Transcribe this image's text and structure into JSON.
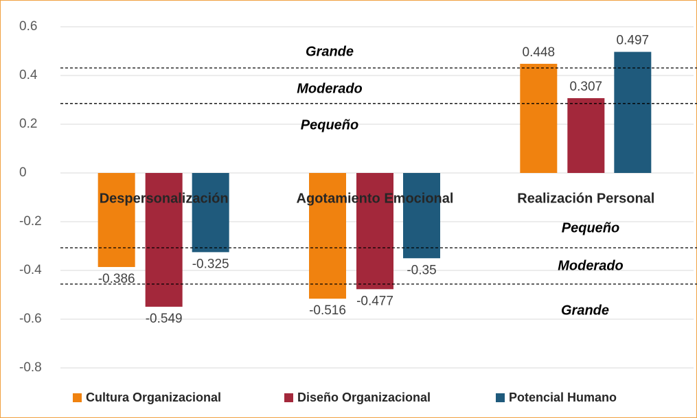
{
  "chart_data": {
    "type": "bar",
    "categories": [
      "Despersonalización",
      "Agotamiento Emocional",
      "Realización Personal"
    ],
    "series": [
      {
        "name": "Cultura Organizacional",
        "color": "#f0820f",
        "values": [
          -0.386,
          -0.516,
          0.448
        ]
      },
      {
        "name": "Diseño Organizacional",
        "color": "#a3283b",
        "values": [
          -0.549,
          -0.477,
          0.307
        ]
      },
      {
        "name": "Potencial Humano",
        "color": "#1f5a7c",
        "values": [
          -0.325,
          -0.35,
          0.497
        ]
      }
    ],
    "ylim": [
      -0.8,
      0.6
    ],
    "yticks": [
      -0.8,
      -0.6,
      -0.4,
      -0.2,
      0,
      0.2,
      0.4,
      0.6
    ],
    "grid": true,
    "reference_lines": [
      0.431,
      0.285,
      -0.307,
      -0.456
    ],
    "annotations": [
      "Grande",
      "Moderado",
      "Pequeño",
      "Pequeño",
      "Moderado",
      "Grande"
    ],
    "legend": "bottom"
  }
}
